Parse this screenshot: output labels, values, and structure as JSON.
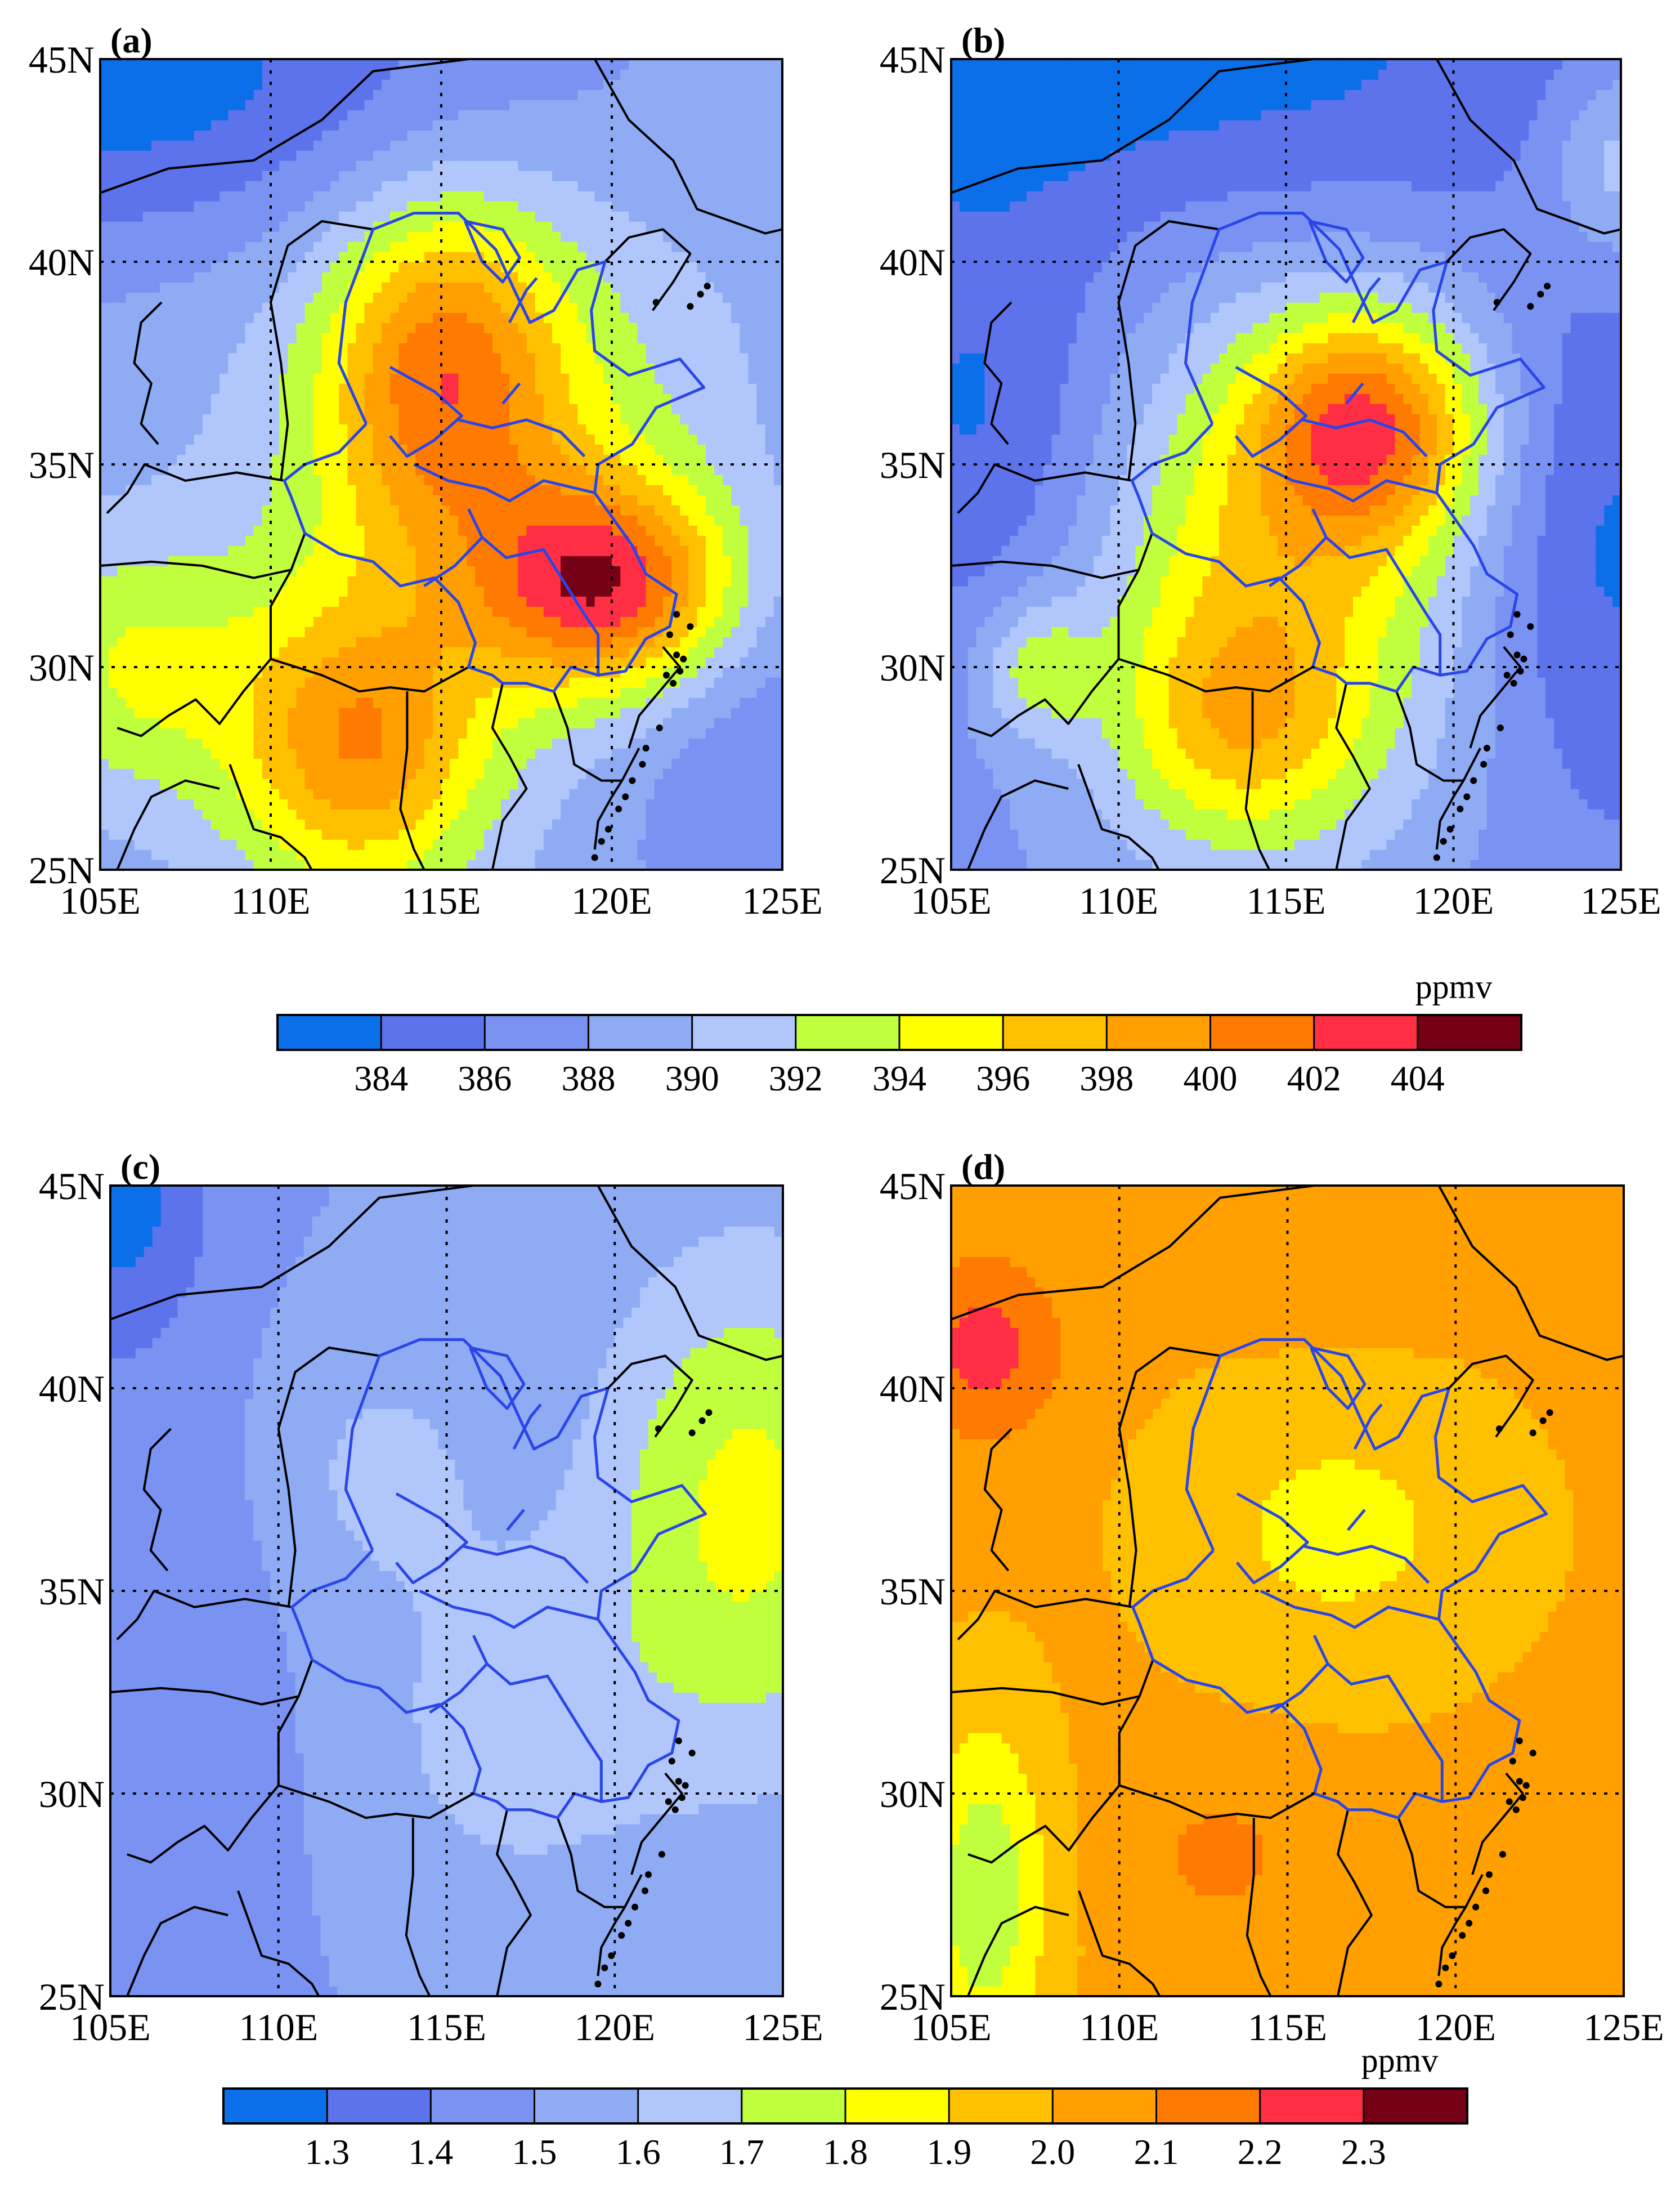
{
  "figure": {
    "panels": [
      {
        "id": "a",
        "label": "(a)",
        "lat_ticks": [
          "45N",
          "40N",
          "35N",
          "30N",
          "25N"
        ],
        "lon_ticks": [
          "105E",
          "110E",
          "115E",
          "120E",
          "125E"
        ],
        "colorbar": "co2",
        "field": {
          "base": 389,
          "hotspots": [
            {
              "lon": 120.0,
              "lat": 32.0,
              "amp": 12.5,
              "sx": 2.6,
              "sy": 1.8
            },
            {
              "lon": 115.0,
              "lat": 37.5,
              "amp": 8.5,
              "sx": 2.4,
              "sy": 3.0
            },
            {
              "lon": 112.5,
              "lat": 28.0,
              "amp": 10.0,
              "sx": 2.6,
              "sy": 2.6
            },
            {
              "lon": 116.5,
              "lat": 35.0,
              "amp": 5.5,
              "sx": 4.5,
              "sy": 4.5
            },
            {
              "lon": 106.0,
              "lat": 30.0,
              "amp": 5.0,
              "sx": 2.5,
              "sy": 2.2
            },
            {
              "lon": 105.0,
              "lat": 44.5,
              "amp": -6.0,
              "sx": 9.0,
              "sy": 3.0
            },
            {
              "lon": 124.0,
              "lat": 28.0,
              "amp": -3.0,
              "sx": 3.0,
              "sy": 4.0
            }
          ]
        }
      },
      {
        "id": "b",
        "label": "(b)",
        "lat_ticks": [
          "45N",
          "40N",
          "35N",
          "30N",
          "25N"
        ],
        "lon_ticks": [
          "105E",
          "110E",
          "115E",
          "120E",
          "125E"
        ],
        "colorbar": "co2",
        "field": {
          "base": 387.5,
          "hotspots": [
            {
              "lon": 117.5,
              "lat": 36.0,
              "amp": 11.5,
              "sx": 2.4,
              "sy": 2.0
            },
            {
              "lon": 114.5,
              "lat": 32.0,
              "amp": 8.5,
              "sx": 4.0,
              "sy": 4.5
            },
            {
              "lon": 113.5,
              "lat": 28.5,
              "amp": 5.0,
              "sx": 2.5,
              "sy": 2.0
            },
            {
              "lon": 107.5,
              "lat": 30.0,
              "amp": 5.0,
              "sx": 1.2,
              "sy": 1.2
            },
            {
              "lon": 125.0,
              "lat": 42.5,
              "amp": 5.0,
              "sx": 1.6,
              "sy": 1.8
            },
            {
              "lon": 106.0,
              "lat": 36.0,
              "amp": -4.0,
              "sx": 3.0,
              "sy": 4.0
            },
            {
              "lon": 110.0,
              "lat": 45.0,
              "amp": -4.5,
              "sx": 12.0,
              "sy": 3.0
            },
            {
              "lon": 124.5,
              "lat": 33.0,
              "amp": -4.0,
              "sx": 2.5,
              "sy": 5.0
            }
          ]
        }
      },
      {
        "id": "c",
        "label": "(c)",
        "lat_ticks": [
          "45N",
          "40N",
          "35N",
          "30N",
          "25N"
        ],
        "lon_ticks": [
          "105E",
          "110E",
          "115E",
          "120E",
          "125E"
        ],
        "colorbar": "ch4",
        "field": {
          "base": 1.5,
          "hotspots": [
            {
              "lon": 124.0,
              "lat": 37.0,
              "amp": 0.33,
              "sx": 3.2,
              "sy": 4.5
            },
            {
              "lon": 117.0,
              "lat": 31.5,
              "amp": 0.15,
              "sx": 3.0,
              "sy": 3.0
            },
            {
              "lon": 113.0,
              "lat": 38.0,
              "amp": 0.12,
              "sx": 2.5,
              "sy": 2.5
            },
            {
              "lon": 105.0,
              "lat": 45.0,
              "amp": -0.25,
              "sx": 2.0,
              "sy": 2.5
            },
            {
              "lon": 106.0,
              "lat": 33.0,
              "amp": -0.1,
              "sx": 2.5,
              "sy": 6.0
            }
          ]
        }
      },
      {
        "id": "d",
        "label": "(d)",
        "lat_ticks": [
          "45N",
          "40N",
          "35N",
          "30N",
          "25N"
        ],
        "lon_ticks": [
          "105E",
          "110E",
          "115E",
          "120E",
          "125E"
        ],
        "colorbar": "ch4",
        "field": {
          "base": 2.02,
          "hotspots": [
            {
              "lon": 106.0,
              "lat": 41.0,
              "amp": 0.22,
              "sx": 1.6,
              "sy": 1.6
            },
            {
              "lon": 116.5,
              "lat": 36.5,
              "amp": -0.15,
              "sx": 3.5,
              "sy": 2.5
            },
            {
              "lon": 106.0,
              "lat": 27.5,
              "amp": -0.3,
              "sx": 1.3,
              "sy": 3.0
            },
            {
              "lon": 113.0,
              "lat": 28.5,
              "amp": 0.1,
              "sx": 2.0,
              "sy": 1.5
            },
            {
              "lon": 116.0,
              "lat": 44.0,
              "amp": 0.08,
              "sx": 3.0,
              "sy": 1.5
            }
          ]
        }
      }
    ],
    "colorbars": {
      "co2": {
        "unit": "ppmv",
        "ticks": [
          "384",
          "386",
          "388",
          "390",
          "392",
          "394",
          "396",
          "398",
          "400",
          "402",
          "404"
        ],
        "min": 382,
        "step": 2,
        "colors": [
          "#0a6fe8",
          "#5c73ec",
          "#7a92f2",
          "#8eabf4",
          "#b1c6fb",
          "#c0ff3e",
          "#ffff00",
          "#ffc000",
          "#ff9f00",
          "#ff7a00",
          "#ff2e44",
          "#760016"
        ]
      },
      "ch4": {
        "unit": "ppmv",
        "ticks": [
          "1.3",
          "1.4",
          "1.5",
          "1.6",
          "1.7",
          "1.8",
          "1.9",
          "2.0",
          "2.1",
          "2.2",
          "2.3"
        ],
        "min": 1.2,
        "step": 0.1,
        "colors": [
          "#0a6fe8",
          "#5c73ec",
          "#7a92f2",
          "#8eabf4",
          "#b1c6fb",
          "#c0ff3e",
          "#ffff00",
          "#ffc000",
          "#ff9f00",
          "#ff7a00",
          "#ff2e44",
          "#760016"
        ]
      }
    }
  }
}
